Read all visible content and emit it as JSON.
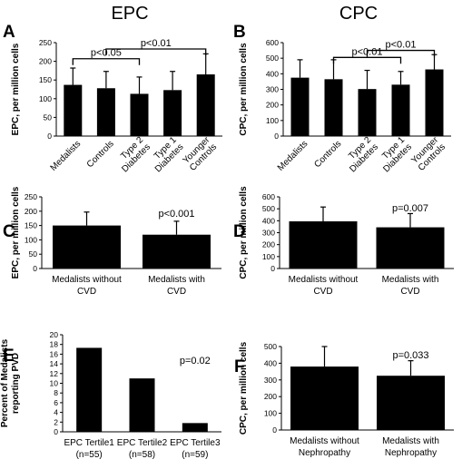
{
  "column_titles": [
    "EPC",
    "CPC"
  ],
  "chart_data": [
    {
      "id": "A",
      "type": "bar",
      "ylabel": "EPC, per million cells",
      "ylim": [
        0,
        250
      ],
      "yticks": [
        0,
        50,
        100,
        150,
        200,
        250
      ],
      "categories": [
        "Medalists",
        "Controls",
        "Type 2 Diabetes",
        "Type 1 Diabetes",
        "Younger Controls"
      ],
      "category_lines": [
        [
          "Medalists"
        ],
        [
          "Controls"
        ],
        [
          "Type 2",
          "Diabetes"
        ],
        [
          "Type 1",
          "Diabetes"
        ],
        [
          "Younger",
          "Controls"
        ]
      ],
      "values": [
        137,
        128,
        113,
        123,
        165
      ],
      "errors": [
        45,
        45,
        45,
        50,
        55
      ],
      "brackets": [
        {
          "from": 0,
          "to": 2,
          "label": "p<0.05",
          "y": 207
        },
        {
          "from": 1,
          "to": 4,
          "label": "p<0.01",
          "y": 233
        }
      ]
    },
    {
      "id": "B",
      "type": "bar",
      "ylabel": "CPC, per million cells",
      "ylim": [
        0,
        600
      ],
      "yticks": [
        0,
        100,
        200,
        300,
        400,
        500,
        600
      ],
      "categories": [
        "Medalists",
        "Controls",
        "Type 2 Diabetes",
        "Type 1 Diabetes",
        "Younger Controls"
      ],
      "category_lines": [
        [
          "Medalists"
        ],
        [
          "Controls"
        ],
        [
          "Type 2",
          "Diabetes"
        ],
        [
          "Type 1",
          "Diabetes"
        ],
        [
          "Younger",
          "Controls"
        ]
      ],
      "values": [
        375,
        365,
        302,
        330,
        428
      ],
      "errors": [
        115,
        125,
        120,
        85,
        95
      ],
      "brackets": [
        {
          "from": 1,
          "to": 3,
          "label": "p<0.01",
          "y": 505
        },
        {
          "from": 2,
          "to": 4,
          "label": "p<0.01",
          "y": 550
        }
      ]
    },
    {
      "id": "C",
      "type": "bar",
      "ylabel": "EPC, per million cells",
      "ylim": [
        0,
        250
      ],
      "yticks": [
        0,
        50,
        100,
        150,
        200,
        250
      ],
      "categories": [
        "Medalists without CVD",
        "Medalists with CVD"
      ],
      "category_lines": [
        [
          "Medalists without",
          "CVD"
        ],
        [
          "Medalists with",
          "CVD"
        ]
      ],
      "values": [
        150,
        118
      ],
      "errors": [
        47,
        47
      ],
      "annotation": {
        "label": "p<0.001",
        "bar": 1,
        "y": 180
      }
    },
    {
      "id": "D",
      "type": "bar",
      "ylabel": "CPC, per million cells",
      "ylim": [
        0,
        600
      ],
      "yticks": [
        0,
        100,
        200,
        300,
        400,
        500,
        600
      ],
      "categories": [
        "Medalists without CVD",
        "Medalists with CVD"
      ],
      "category_lines": [
        [
          "Medalists without",
          "CVD"
        ],
        [
          "Medalists with",
          "CVD"
        ]
      ],
      "values": [
        395,
        345
      ],
      "errors": [
        120,
        115
      ],
      "annotation": {
        "label": "p=0.007",
        "bar": 1,
        "y": 480
      }
    },
    {
      "id": "E",
      "type": "bar",
      "ylabel": "Percent of Medalists reporting PVD",
      "ylabel_lines": [
        "Percent of Medalists",
        "reporting PVD"
      ],
      "ylim": [
        0,
        20
      ],
      "yticks": [
        0,
        2,
        4,
        6,
        8,
        10,
        12,
        14,
        16,
        18,
        20
      ],
      "categories": [
        "EPC Tertile1 (n=55)",
        "EPC Tertile2 (n=58)",
        "EPC Tertile3 (n=59)"
      ],
      "category_lines": [
        [
          "EPC Tertile1",
          "(n=55)"
        ],
        [
          "EPC Tertile2",
          "(n=58)"
        ],
        [
          "EPC Tertile3",
          "(n=59)"
        ]
      ],
      "values": [
        17.3,
        11,
        1.8
      ],
      "annotation": {
        "label": "p=0.02",
        "bar": 2,
        "y": 14
      }
    },
    {
      "id": "F",
      "type": "bar",
      "ylabel": "CPC, per million cells",
      "ylim": [
        0,
        500
      ],
      "yticks": [
        0,
        100,
        200,
        300,
        400,
        500
      ],
      "categories": [
        "Medalists without Nephropathy",
        "Medalists with Nephropathy"
      ],
      "category_lines": [
        [
          "Medalists without",
          "Nephropathy"
        ],
        [
          "Medalists with",
          "Nephropathy"
        ]
      ],
      "values": [
        380,
        325
      ],
      "errors": [
        120,
        90
      ],
      "annotation": {
        "label": "p=0.033",
        "bar": 1,
        "y": 430
      }
    }
  ]
}
